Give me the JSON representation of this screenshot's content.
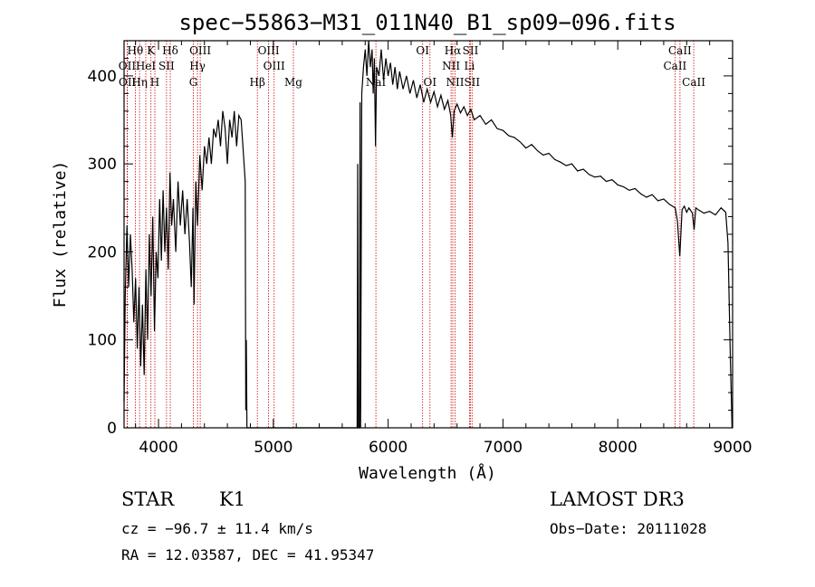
{
  "chart_data": {
    "type": "line",
    "title": "spec−55863−M31_011N40_B1_sp09−096.fits",
    "xlabel": "Wavelength (Å)",
    "ylabel": "Flux (relative)",
    "xlim": [
      3700,
      9000
    ],
    "ylim": [
      0,
      440
    ],
    "x_ticks": [
      4000,
      5000,
      6000,
      7000,
      8000,
      9000
    ],
    "y_ticks": [
      0,
      100,
      200,
      300,
      400
    ],
    "series": [
      {
        "name": "flux",
        "points": [
          [
            3700,
            30
          ],
          [
            3710,
            150
          ],
          [
            3725,
            230
          ],
          [
            3740,
            160
          ],
          [
            3755,
            220
          ],
          [
            3770,
            180
          ],
          [
            3785,
            120
          ],
          [
            3800,
            170
          ],
          [
            3815,
            90
          ],
          [
            3830,
            160
          ],
          [
            3845,
            70
          ],
          [
            3860,
            140
          ],
          [
            3875,
            60
          ],
          [
            3890,
            180
          ],
          [
            3905,
            100
          ],
          [
            3920,
            220
          ],
          [
            3935,
            150
          ],
          [
            3950,
            240
          ],
          [
            3965,
            110
          ],
          [
            3980,
            200
          ],
          [
            3995,
            170
          ],
          [
            4010,
            260
          ],
          [
            4025,
            190
          ],
          [
            4040,
            270
          ],
          [
            4055,
            200
          ],
          [
            4070,
            250
          ],
          [
            4085,
            180
          ],
          [
            4100,
            290
          ],
          [
            4115,
            230
          ],
          [
            4130,
            260
          ],
          [
            4150,
            200
          ],
          [
            4170,
            280
          ],
          [
            4190,
            230
          ],
          [
            4210,
            270
          ],
          [
            4230,
            220
          ],
          [
            4250,
            260
          ],
          [
            4270,
            210
          ],
          [
            4285,
            160
          ],
          [
            4300,
            250
          ],
          [
            4310,
            140
          ],
          [
            4325,
            280
          ],
          [
            4340,
            230
          ],
          [
            4360,
            310
          ],
          [
            4380,
            270
          ],
          [
            4400,
            320
          ],
          [
            4420,
            300
          ],
          [
            4440,
            330
          ],
          [
            4460,
            300
          ],
          [
            4480,
            340
          ],
          [
            4500,
            330
          ],
          [
            4520,
            350
          ],
          [
            4540,
            320
          ],
          [
            4560,
            360
          ],
          [
            4580,
            340
          ],
          [
            4600,
            300
          ],
          [
            4620,
            350
          ],
          [
            4640,
            330
          ],
          [
            4660,
            360
          ],
          [
            4680,
            320
          ],
          [
            4700,
            355
          ],
          [
            4720,
            350
          ],
          [
            4740,
            310
          ],
          [
            4755,
            280
          ],
          [
            4760,
            20
          ],
          [
            4765,
            100
          ],
          [
            4770,
            0
          ],
          [
            5730,
            0
          ],
          [
            5735,
            300
          ],
          [
            5740,
            0
          ],
          [
            5750,
            0
          ],
          [
            5755,
            370
          ],
          [
            5760,
            0
          ],
          [
            5770,
            380
          ],
          [
            5785,
            410
          ],
          [
            5800,
            430
          ],
          [
            5815,
            400
          ],
          [
            5830,
            440
          ],
          [
            5845,
            410
          ],
          [
            5860,
            430
          ],
          [
            5870,
            380
          ],
          [
            5880,
            420
          ],
          [
            5890,
            320
          ],
          [
            5900,
            410
          ],
          [
            5920,
            400
          ],
          [
            5940,
            430
          ],
          [
            5960,
            395
          ],
          [
            5980,
            420
          ],
          [
            6000,
            400
          ],
          [
            6020,
            415
          ],
          [
            6040,
            390
          ],
          [
            6060,
            410
          ],
          [
            6080,
            385
          ],
          [
            6100,
            405
          ],
          [
            6130,
            385
          ],
          [
            6160,
            400
          ],
          [
            6190,
            380
          ],
          [
            6220,
            395
          ],
          [
            6250,
            375
          ],
          [
            6280,
            390
          ],
          [
            6310,
            370
          ],
          [
            6340,
            385
          ],
          [
            6370,
            370
          ],
          [
            6400,
            382
          ],
          [
            6430,
            365
          ],
          [
            6460,
            378
          ],
          [
            6490,
            362
          ],
          [
            6520,
            372
          ],
          [
            6545,
            355
          ],
          [
            6560,
            330
          ],
          [
            6575,
            360
          ],
          [
            6600,
            368
          ],
          [
            6630,
            358
          ],
          [
            6660,
            365
          ],
          [
            6690,
            355
          ],
          [
            6720,
            362
          ],
          [
            6750,
            350
          ],
          [
            6800,
            355
          ],
          [
            6850,
            345
          ],
          [
            6900,
            350
          ],
          [
            6950,
            340
          ],
          [
            7000,
            338
          ],
          [
            7050,
            332
          ],
          [
            7100,
            330
          ],
          [
            7150,
            325
          ],
          [
            7200,
            318
          ],
          [
            7250,
            322
          ],
          [
            7300,
            315
          ],
          [
            7350,
            310
          ],
          [
            7400,
            312
          ],
          [
            7450,
            305
          ],
          [
            7500,
            302
          ],
          [
            7550,
            298
          ],
          [
            7600,
            300
          ],
          [
            7650,
            292
          ],
          [
            7700,
            294
          ],
          [
            7750,
            288
          ],
          [
            7800,
            285
          ],
          [
            7850,
            286
          ],
          [
            7900,
            280
          ],
          [
            7950,
            282
          ],
          [
            8000,
            276
          ],
          [
            8050,
            274
          ],
          [
            8100,
            270
          ],
          [
            8150,
            272
          ],
          [
            8200,
            266
          ],
          [
            8250,
            262
          ],
          [
            8300,
            265
          ],
          [
            8350,
            258
          ],
          [
            8400,
            260
          ],
          [
            8450,
            254
          ],
          [
            8500,
            250
          ],
          [
            8520,
            235
          ],
          [
            8540,
            195
          ],
          [
            8560,
            248
          ],
          [
            8580,
            252
          ],
          [
            8600,
            245
          ],
          [
            8620,
            250
          ],
          [
            8650,
            244
          ],
          [
            8665,
            225
          ],
          [
            8680,
            250
          ],
          [
            8700,
            248
          ],
          [
            8750,
            244
          ],
          [
            8800,
            246
          ],
          [
            8850,
            242
          ],
          [
            8900,
            250
          ],
          [
            8940,
            245
          ],
          [
            8960,
            210
          ],
          [
            8980,
            80
          ],
          [
            8995,
            0
          ]
        ]
      }
    ],
    "annotations": [
      {
        "label": "Hθ",
        "wavelength": 3798,
        "row": 1
      },
      {
        "label": "K",
        "wavelength": 3934,
        "row": 1
      },
      {
        "label": "Hδ",
        "wavelength": 4102,
        "row": 1
      },
      {
        "label": "OIII",
        "wavelength": 4363,
        "row": 1
      },
      {
        "label": "OIII",
        "wavelength": 4959,
        "row": 1
      },
      {
        "label": "NaI",
        "wavelength": 5893,
        "row": 3
      },
      {
        "label": "OI",
        "wavelength": 6300,
        "row": 1
      },
      {
        "label": "Hα",
        "wavelength": 6563,
        "row": 1
      },
      {
        "label": "SII",
        "wavelength": 6717,
        "row": 1
      },
      {
        "label": "CaII",
        "wavelength": 8542,
        "row": 1
      },
      {
        "label": "OII",
        "wavelength": 3727,
        "row": 2
      },
      {
        "label": "HeI",
        "wavelength": 3889,
        "row": 2
      },
      {
        "label": "SII",
        "wavelength": 4070,
        "row": 2
      },
      {
        "label": "Hγ",
        "wavelength": 4340,
        "row": 2
      },
      {
        "label": "OIII",
        "wavelength": 5007,
        "row": 2
      },
      {
        "label": "NII",
        "wavelength": 6548,
        "row": 2
      },
      {
        "label": "Li",
        "wavelength": 6708,
        "row": 2
      },
      {
        "label": "CaII",
        "wavelength": 8498,
        "row": 2
      },
      {
        "label": "OII",
        "wavelength": 3729,
        "row": 3
      },
      {
        "label": "Hη",
        "wavelength": 3835,
        "row": 3
      },
      {
        "label": "H",
        "wavelength": 3968,
        "row": 3
      },
      {
        "label": "G",
        "wavelength": 4304,
        "row": 3
      },
      {
        "label": "Hβ",
        "wavelength": 4861,
        "row": 3
      },
      {
        "label": "Mg",
        "wavelength": 5175,
        "row": 3
      },
      {
        "label": "OI",
        "wavelength": 6364,
        "row": 3
      },
      {
        "label": "NII",
        "wavelength": 6583,
        "row": 3
      },
      {
        "label": "SII",
        "wavelength": 6731,
        "row": 3
      },
      {
        "label": "CaII",
        "wavelength": 8662,
        "row": 3
      }
    ],
    "colors": {
      "spectrum": "#000000",
      "line_markers": "#cc0000"
    }
  },
  "info": {
    "class": "STAR",
    "subclass": "K1",
    "survey": "LAMOST DR3",
    "cz": "cz = −96.7 ± 11.4 km/s",
    "obs_date": "Obs−Date: 20111028",
    "radec": "RA =  12.03587, DEC =  41.95347"
  }
}
